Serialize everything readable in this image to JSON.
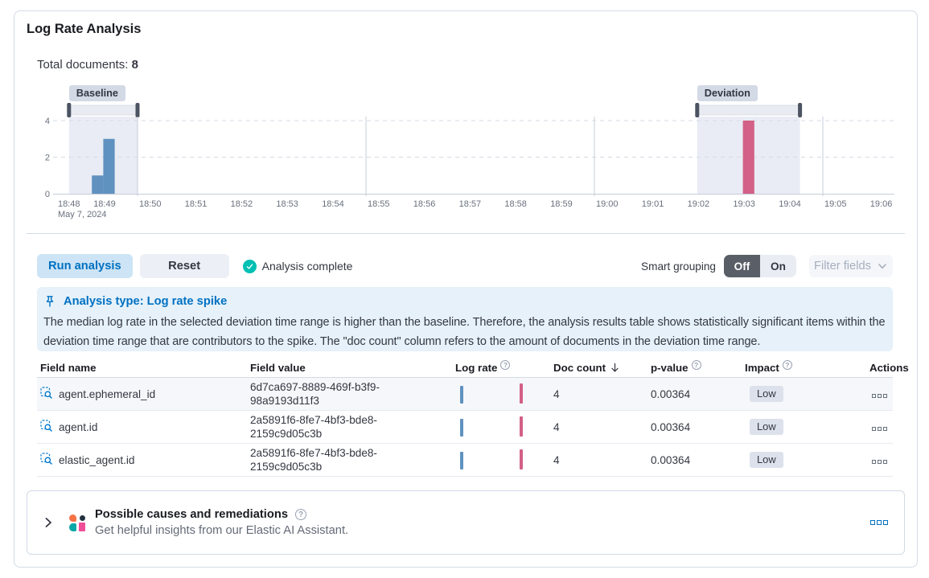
{
  "colors": {
    "primary_blue": "#0071C2",
    "baseline_bar": "#6092C0",
    "deviation_bar": "#D36086",
    "success_teal": "#00BFB3",
    "callout_bg": "#E6F1FA",
    "badge_bg": "#D3DAE6",
    "text": "#343741",
    "subdued_text": "#69707D"
  },
  "icons": {
    "question_mark": "?"
  },
  "header": {
    "title": "Log Rate Analysis",
    "total_documents_label": "Total documents:",
    "total_documents_value": "8"
  },
  "chart_data": {
    "type": "bar",
    "x_axis": {
      "tick_labels": [
        "18:48",
        "18:49",
        "18:50",
        "18:51",
        "18:52",
        "18:53",
        "18:54",
        "18:55",
        "18:56",
        "18:57",
        "18:58",
        "18:59",
        "19:00",
        "19:01",
        "19:02",
        "19:03",
        "19:04",
        "19:05",
        "19:06"
      ],
      "date_label": "May 7, 2024",
      "tick_interval_min": 1
    },
    "y_axis": {
      "tick_labels": [
        0,
        2,
        4
      ],
      "range": [
        0,
        4
      ]
    },
    "series_colors": {
      "Baseline": "#6092C0",
      "Deviation": "#D36086"
    },
    "bars": [
      {
        "series": "Baseline",
        "time": "18:49:00",
        "from_min": 1.0,
        "to_min": 1.25,
        "count": 1
      },
      {
        "series": "Baseline",
        "time": "18:49:15",
        "from_min": 1.25,
        "to_min": 1.5,
        "count": 3
      },
      {
        "series": "Deviation",
        "time": "19:03:15",
        "from_min": 15.25,
        "to_min": 15.5,
        "count": 4
      }
    ],
    "brushes": [
      {
        "label": "Baseline",
        "from_min": 0.5,
        "to_min": 2.0
      },
      {
        "label": "Deviation",
        "from_min": 14.25,
        "to_min": 16.5
      }
    ],
    "vertical_gridlines_min": [
      2,
      7,
      12,
      17
    ],
    "horizontal_gridlines": [
      2,
      4
    ],
    "grid": true,
    "legend": "none"
  },
  "controls": {
    "run_button": "Run analysis",
    "reset_button": "Reset",
    "status": "Analysis complete",
    "smart_grouping_label": "Smart grouping",
    "smart_grouping_off": "Off",
    "smart_grouping_on": "On",
    "smart_grouping_selected": "Off",
    "filter_fields_button": "Filter fields"
  },
  "callout": {
    "title": "Analysis type: Log rate spike",
    "body": "The median log rate in the selected deviation time range is higher than the baseline. Therefore, the analysis results table shows statistically significant items within the deviation time range that are contributors to the spike. The \"doc count\" column refers to the amount of documents in the deviation time range."
  },
  "table": {
    "columns": [
      "Field name",
      "Field value",
      "Log rate",
      "Doc count",
      "p-value",
      "Impact",
      "Actions"
    ],
    "sorted_column": "Doc count",
    "sort_direction": "descending",
    "rows": [
      {
        "field_name": "agent.ephemeral_id",
        "field_value": "6d7ca697-8889-469f-b3f9-98a9193d11f3",
        "doc_count": "4",
        "p_value": "0.00364",
        "impact": "Low"
      },
      {
        "field_name": "agent.id",
        "field_value": "2a5891f6-8fe7-4bf3-bde8-2159c9d05c3b",
        "doc_count": "4",
        "p_value": "0.00364",
        "impact": "Low"
      },
      {
        "field_name": "elastic_agent.id",
        "field_value": "2a5891f6-8fe7-4bf3-bde8-2159c9d05c3b",
        "doc_count": "4",
        "p_value": "0.00364",
        "impact": "Low"
      }
    ]
  },
  "ai_panel": {
    "title": "Possible causes and remediations",
    "subtitle": "Get helpful insights from our Elastic AI Assistant."
  }
}
